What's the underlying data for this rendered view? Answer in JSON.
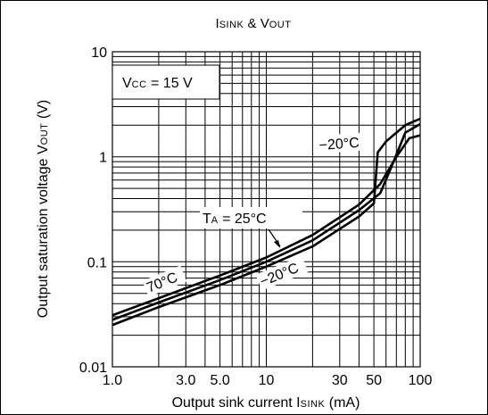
{
  "chart_data": {
    "type": "line",
    "title_main": "I",
    "title_sub1": "SINK",
    "title_mid": " & V",
    "title_sub2": "OUT",
    "xlabel_main": "Output sink current I",
    "xlabel_sub": "SINK",
    "xlabel_unit": " (mA)",
    "ylabel_main": "Output saturation voltage V",
    "ylabel_sub": "OUT",
    "ylabel_unit": " (V)",
    "x_scale": "log",
    "y_scale": "log",
    "xlim": [
      1,
      100
    ],
    "ylim": [
      0.01,
      10
    ],
    "x_tick_labels": [
      {
        "value": 1,
        "label": "1.0"
      },
      {
        "value": 3,
        "label": "3.0"
      },
      {
        "value": 5,
        "label": "5.0"
      },
      {
        "value": 10,
        "label": "10"
      },
      {
        "value": 30,
        "label": "30"
      },
      {
        "value": 50,
        "label": "50"
      },
      {
        "value": 100,
        "label": "100"
      }
    ],
    "y_tick_labels": [
      {
        "value": 10,
        "label": "10"
      },
      {
        "value": 1,
        "label": "1"
      },
      {
        "value": 0.1,
        "label": "0.1"
      },
      {
        "value": 0.01,
        "label": "0.01"
      }
    ],
    "grid": true,
    "series": [
      {
        "name": "70°C",
        "x": [
          1,
          2,
          5,
          10,
          20,
          40,
          55,
          70,
          85,
          100
        ],
        "y": [
          0.031,
          0.045,
          0.074,
          0.11,
          0.18,
          0.35,
          0.55,
          1.0,
          1.5,
          1.6
        ]
      },
      {
        "name": "25°C",
        "x": [
          1,
          2,
          5,
          10,
          20,
          40,
          55,
          65,
          80,
          100
        ],
        "y": [
          0.028,
          0.041,
          0.067,
          0.1,
          0.16,
          0.31,
          0.45,
          0.8,
          1.7,
          2.05
        ]
      },
      {
        "name": "−20°C",
        "x": [
          1,
          2,
          5,
          10,
          20,
          40,
          50,
          53,
          60,
          80,
          100
        ],
        "y": [
          0.025,
          0.037,
          0.06,
          0.09,
          0.14,
          0.27,
          0.36,
          1.1,
          1.4,
          2.0,
          2.3
        ]
      }
    ],
    "annotations": {
      "vcc_main": "V",
      "vcc_sub": "CC",
      "vcc_value": " = 15 V",
      "ta_main": "T",
      "ta_sub": "A",
      "ta_value": " = 25°C",
      "label_70": "70°C",
      "label_m20_low": "−20°C",
      "label_m20_high": "−20°C"
    }
  }
}
